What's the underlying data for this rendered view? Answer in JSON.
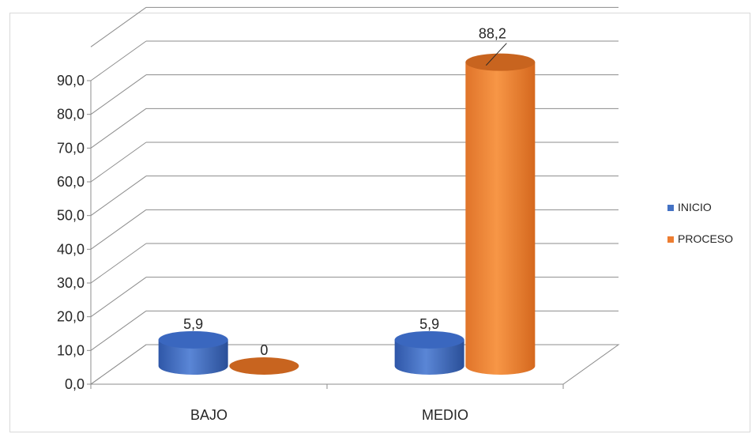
{
  "chart_data": {
    "type": "bar",
    "categories": [
      "BAJO",
      "MEDIO"
    ],
    "series": [
      {
        "name": "INICIO",
        "values": [
          5.9,
          5.9
        ],
        "labels": [
          "5,9",
          "5,9"
        ],
        "color": "#4472C4"
      },
      {
        "name": "PROCESO",
        "values": [
          0,
          88.2
        ],
        "labels": [
          "0",
          "88,2"
        ],
        "color": "#ED7D31"
      }
    ],
    "ylim": [
      0,
      90
    ],
    "yticks": [
      "0,0",
      "10,0",
      "20,0",
      "30,0",
      "40,0",
      "50,0",
      "60,0",
      "70,0",
      "80,0",
      "90,0"
    ],
    "grid": true,
    "legend": "right",
    "style": "3d-cylinder"
  }
}
